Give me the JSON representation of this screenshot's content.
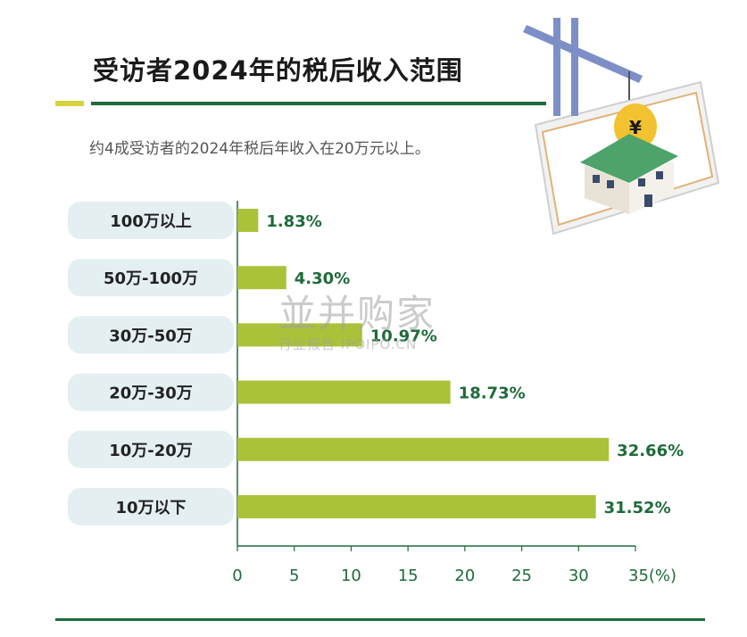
{
  "title": "受访者2024年的税后收入范围",
  "subtitle": "约4成受访者的2024年税后年收入在20万元以上。",
  "watermark": {
    "brand": "並并购家",
    "sub": "行业报告 IPOIPO.CN"
  },
  "colors": {
    "bar": "#a9c23a",
    "label_bg": "#e4eff2",
    "value_text": "#1e6b3a",
    "axis": "#1e6b3a",
    "accent_yellow": "#d6d43a"
  },
  "chart_data": {
    "type": "bar",
    "orientation": "horizontal",
    "categories": [
      "100万以上",
      "50万-100万",
      "30万-50万",
      "20万-30万",
      "10万-20万",
      "10万以下"
    ],
    "values": [
      1.83,
      4.3,
      10.97,
      18.73,
      32.66,
      31.52
    ],
    "value_labels": [
      "1.83%",
      "4.30%",
      "10.97%",
      "18.73%",
      "32.66%",
      "31.52%"
    ],
    "xlim": [
      0,
      35
    ],
    "ticks": [
      0,
      5,
      10,
      15,
      20,
      25,
      30,
      35
    ],
    "x_unit": "(%)"
  }
}
